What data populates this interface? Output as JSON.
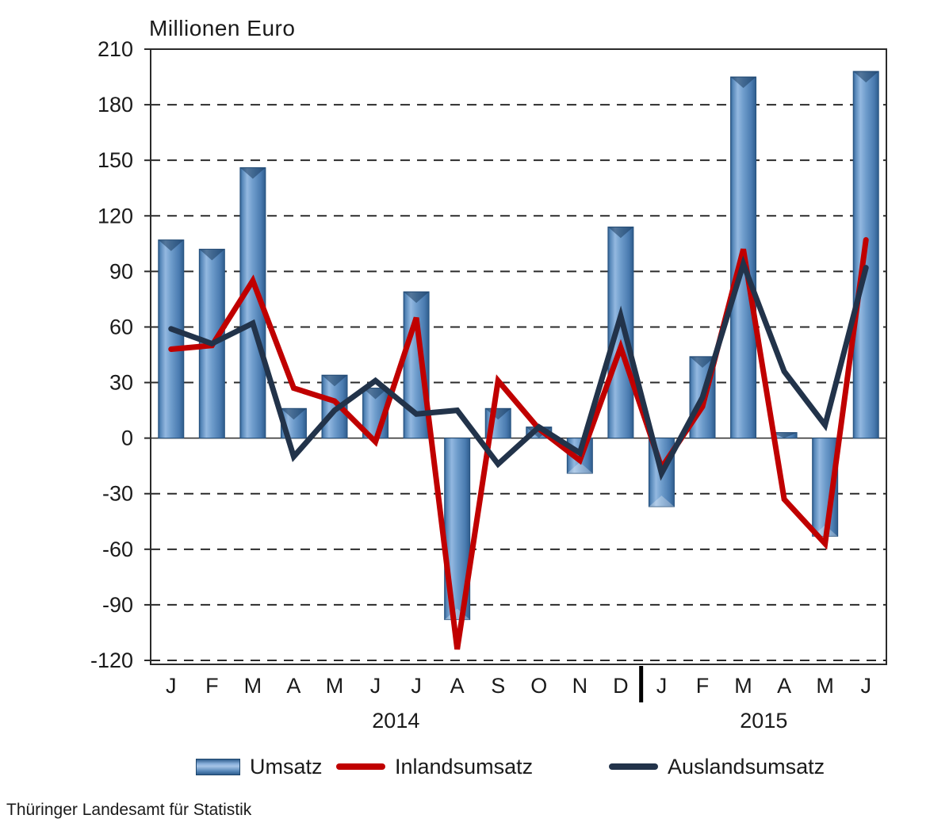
{
  "title": "Millionen Euro",
  "source": "Thüringer Landesamt für Statistik",
  "chart_data": {
    "type": "bar",
    "subtype": "combo-bar-line",
    "title": "Millionen Euro",
    "ylabel": "Millionen Euro",
    "xlabel": "",
    "categories": [
      "J",
      "F",
      "M",
      "A",
      "M",
      "J",
      "J",
      "A",
      "S",
      "O",
      "N",
      "D",
      "J",
      "F",
      "M",
      "A",
      "M",
      "J"
    ],
    "year_groups": [
      {
        "label": "2014",
        "count": 12
      },
      {
        "label": "2015",
        "count": 6
      }
    ],
    "series": [
      {
        "name": "Umsatz",
        "type": "bar",
        "color": "#6e9ccc",
        "values": [
          107,
          102,
          146,
          16,
          34,
          27,
          79,
          -98,
          16,
          6,
          -19,
          114,
          -37,
          44,
          195,
          3,
          -53,
          198
        ]
      },
      {
        "name": "Inlandsumsatz",
        "type": "line",
        "color": "#c00000",
        "values": [
          48,
          50,
          85,
          27,
          20,
          -2,
          65,
          -114,
          31,
          5,
          -12,
          49,
          -16,
          17,
          102,
          -33,
          -57,
          107
        ]
      },
      {
        "name": "Auslandsumsatz",
        "type": "line",
        "color": "#22334a",
        "values": [
          59,
          51,
          62,
          -10,
          15,
          31,
          13,
          15,
          -14,
          6,
          -8,
          66,
          -19,
          22,
          94,
          36,
          7,
          92
        ]
      }
    ],
    "ylim": [
      -120,
      210
    ],
    "ytick_step": 30,
    "grid": "dashed-horizontal",
    "legend_position": "bottom"
  }
}
